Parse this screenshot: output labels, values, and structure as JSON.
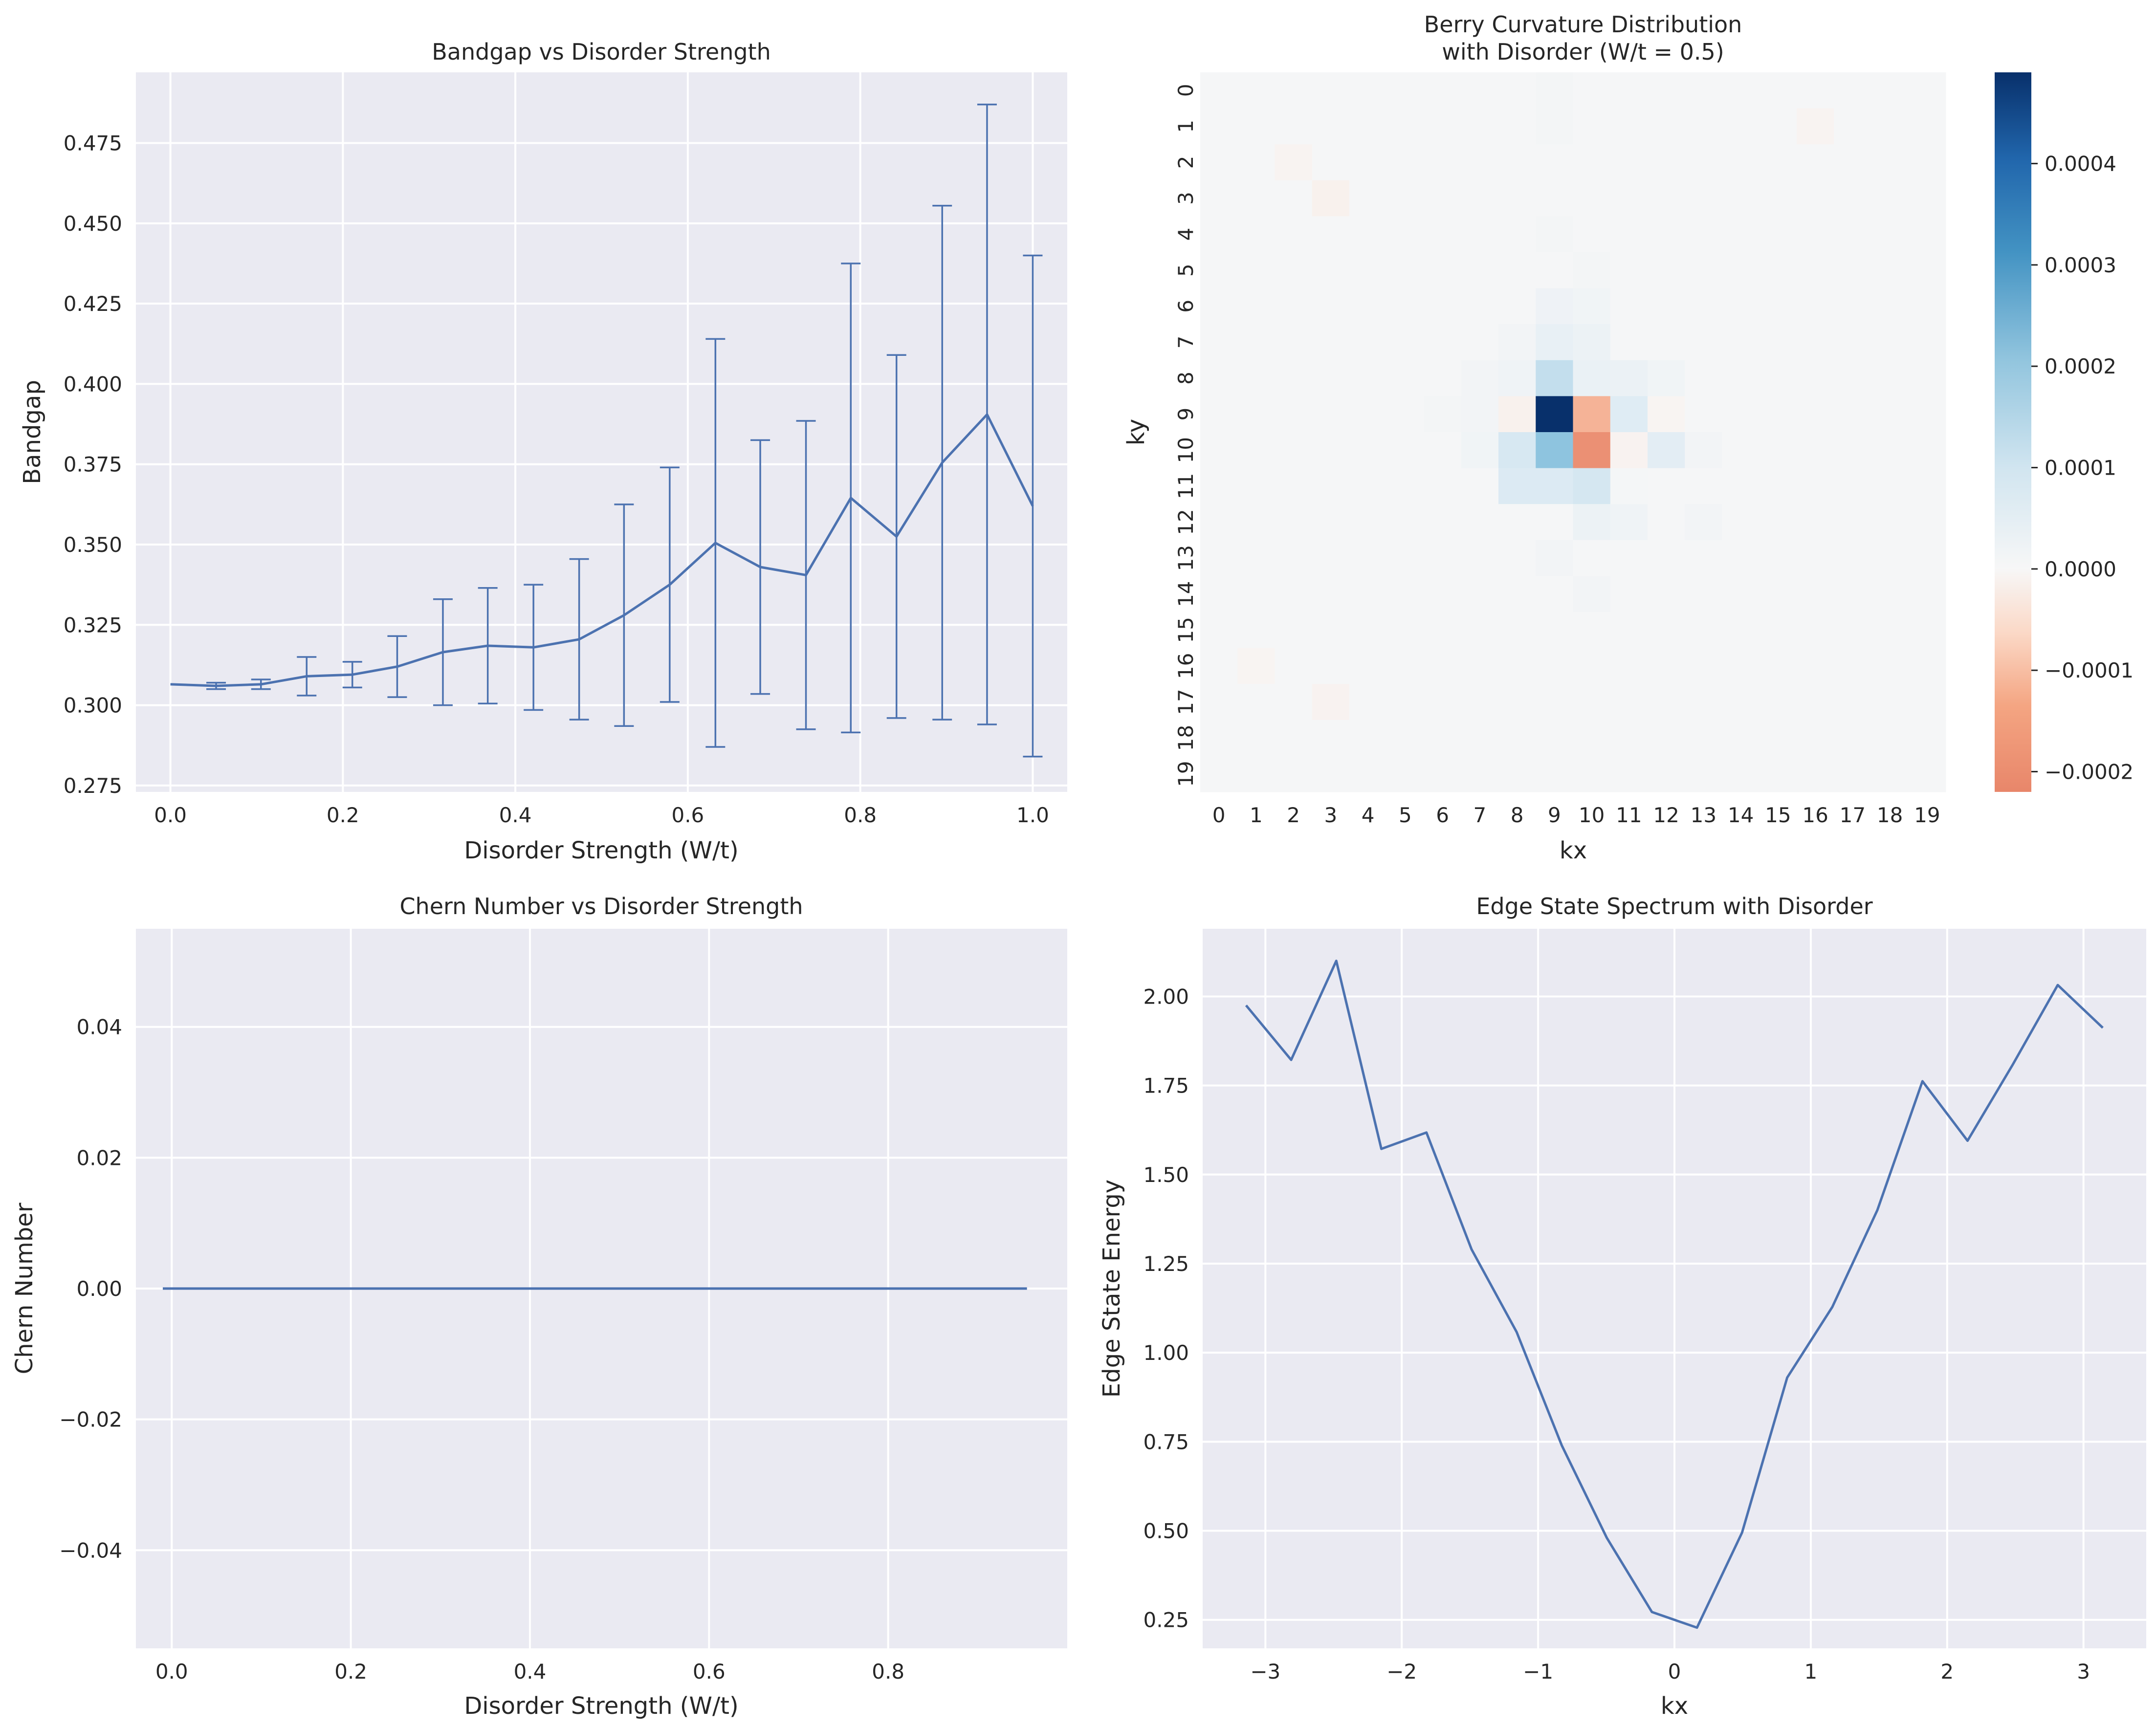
{
  "colors": {
    "series": "#4c72b0",
    "plot_bg": "#eaeaf2",
    "grid": "#ffffff",
    "text": "#262626",
    "cmap_neg": "#e8866a",
    "cmap_zero": "#f7f7f7",
    "cmap_pos": "#08306b"
  },
  "chart_data": [
    {
      "id": "bandgap",
      "type": "line",
      "title": "Bandgap vs Disorder Strength",
      "xlabel": "Disorder Strength (W/t)",
      "ylabel": "Bandgap",
      "xlim": [
        -0.04,
        1.04
      ],
      "ylim": [
        0.273,
        0.497
      ],
      "xticks": [
        0.0,
        0.2,
        0.4,
        0.6,
        0.8,
        1.0
      ],
      "xtick_labels": [
        "0.0",
        "0.2",
        "0.4",
        "0.6",
        "0.8",
        "1.0"
      ],
      "yticks": [
        0.275,
        0.3,
        0.325,
        0.35,
        0.375,
        0.4,
        0.425,
        0.45,
        0.475
      ],
      "ytick_labels": [
        "0.275",
        "0.300",
        "0.325",
        "0.350",
        "0.375",
        "0.400",
        "0.425",
        "0.450",
        "0.475"
      ],
      "x": [
        0.0,
        0.053,
        0.105,
        0.158,
        0.211,
        0.263,
        0.316,
        0.368,
        0.421,
        0.474,
        0.526,
        0.579,
        0.632,
        0.684,
        0.737,
        0.789,
        0.842,
        0.895,
        0.947,
        1.0
      ],
      "y": [
        0.3065,
        0.306,
        0.3065,
        0.309,
        0.3095,
        0.312,
        0.3165,
        0.3185,
        0.318,
        0.3205,
        0.328,
        0.3375,
        0.3505,
        0.343,
        0.3405,
        0.3645,
        0.3525,
        0.3755,
        0.3905,
        0.362
      ],
      "yerr": [
        0.0,
        0.001,
        0.0015,
        0.006,
        0.004,
        0.0095,
        0.0165,
        0.018,
        0.0195,
        0.025,
        0.0345,
        0.0365,
        0.0635,
        0.0395,
        0.048,
        0.073,
        0.0565,
        0.08,
        0.0965,
        0.078
      ],
      "grid": true
    },
    {
      "id": "berry",
      "type": "heatmap",
      "title": "Berry Curvature Distribution",
      "subtitle": "with Disorder (W/t = 0.5)",
      "xlabel": "kx",
      "ylabel": "ky",
      "x_tick_labels": [
        "0",
        "1",
        "2",
        "3",
        "4",
        "5",
        "6",
        "7",
        "8",
        "9",
        "10",
        "11",
        "12",
        "13",
        "14",
        "15",
        "16",
        "17",
        "18",
        "19"
      ],
      "y_tick_labels": [
        "0",
        "1",
        "2",
        "3",
        "4",
        "5",
        "6",
        "7",
        "8",
        "9",
        "10",
        "11",
        "12",
        "13",
        "14",
        "15",
        "16",
        "17",
        "18",
        "19"
      ],
      "vmin": -0.00022,
      "vmax": 0.00049,
      "colorbar_ticks": [
        -0.0002,
        -0.0001,
        0.0,
        0.0001,
        0.0002,
        0.0003,
        0.0004
      ],
      "colorbar_tick_labels": [
        "−0.0002",
        "−0.0001",
        "0.0000",
        "0.0001",
        "0.0002",
        "0.0003",
        "0.0004"
      ],
      "cells": [
        {
          "r": 8,
          "c": 8,
          "v": 1.2e-05
        },
        {
          "r": 8,
          "c": 9,
          "v": 9e-05
        },
        {
          "r": 8,
          "c": 10,
          "v": 2e-05
        },
        {
          "r": 8,
          "c": 11,
          "v": 1.8e-05
        },
        {
          "r": 8,
          "c": 12,
          "v": 1e-05
        },
        {
          "r": 8,
          "c": 7,
          "v": 8e-06
        },
        {
          "r": 7,
          "c": 9,
          "v": 2.2e-05
        },
        {
          "r": 7,
          "c": 10,
          "v": 1.6e-05
        },
        {
          "r": 7,
          "c": 8,
          "v": 8e-06
        },
        {
          "r": 6,
          "c": 9,
          "v": 1.4e-05
        },
        {
          "r": 6,
          "c": 10,
          "v": 1e-05
        },
        {
          "r": 9,
          "c": 8,
          "v": -8e-06
        },
        {
          "r": 9,
          "c": 9,
          "v": 0.00049
        },
        {
          "r": 9,
          "c": 10,
          "v": -9.5e-05
        },
        {
          "r": 9,
          "c": 11,
          "v": 3.5e-05
        },
        {
          "r": 9,
          "c": 7,
          "v": 8e-06
        },
        {
          "r": 9,
          "c": 6,
          "v": 6e-06
        },
        {
          "r": 9,
          "c": 12,
          "v": -4e-06
        },
        {
          "r": 10,
          "c": 8,
          "v": 5e-05
        },
        {
          "r": 10,
          "c": 9,
          "v": 0.00018
        },
        {
          "r": 10,
          "c": 10,
          "v": -0.00019
        },
        {
          "r": 10,
          "c": 11,
          "v": -6e-06
        },
        {
          "r": 10,
          "c": 12,
          "v": 3e-05
        },
        {
          "r": 10,
          "c": 7,
          "v": 1e-05
        },
        {
          "r": 10,
          "c": 13,
          "v": 8e-06
        },
        {
          "r": 11,
          "c": 8,
          "v": 4e-05
        },
        {
          "r": 11,
          "c": 9,
          "v": 4e-05
        },
        {
          "r": 11,
          "c": 10,
          "v": 5.5e-05
        },
        {
          "r": 11,
          "c": 11,
          "v": 4e-06
        },
        {
          "r": 12,
          "c": 10,
          "v": 1.6e-05
        },
        {
          "r": 12,
          "c": 11,
          "v": 1.2e-05
        },
        {
          "r": 12,
          "c": 13,
          "v": 8e-06
        },
        {
          "r": 13,
          "c": 9,
          "v": 8e-06
        },
        {
          "r": 14,
          "c": 10,
          "v": 8e-06
        },
        {
          "r": 3,
          "c": 3,
          "v": -8e-06
        },
        {
          "r": 2,
          "c": 2,
          "v": -5e-06
        },
        {
          "r": 1,
          "c": 16,
          "v": -5e-06
        },
        {
          "r": 17,
          "c": 3,
          "v": -6e-06
        },
        {
          "r": 16,
          "c": 1,
          "v": -4e-06
        },
        {
          "r": 0,
          "c": 9,
          "v": 6e-06
        },
        {
          "r": 1,
          "c": 9,
          "v": 6e-06
        },
        {
          "r": 5,
          "c": 10,
          "v": 6e-06
        },
        {
          "r": 4,
          "c": 9,
          "v": 6e-06
        }
      ],
      "grid": false
    },
    {
      "id": "chern",
      "type": "line",
      "title": "Chern Number vs Disorder Strength",
      "xlabel": "Disorder Strength (W/t)",
      "ylabel": "Chern Number",
      "xlim": [
        -0.04,
        1.0
      ],
      "ylim": [
        -0.055,
        0.055
      ],
      "xticks": [
        0.0,
        0.2,
        0.4,
        0.6,
        0.8
      ],
      "xtick_labels": [
        "0.0",
        "0.2",
        "0.4",
        "0.6",
        "0.8"
      ],
      "yticks": [
        -0.04,
        -0.02,
        0.0,
        0.02,
        0.04
      ],
      "ytick_labels": [
        "−0.04",
        "−0.02",
        "0.00",
        "0.02",
        "0.04"
      ],
      "x": [
        -0.01,
        0.955
      ],
      "y": [
        0.0,
        0.0
      ],
      "grid": true
    },
    {
      "id": "edge",
      "type": "line",
      "title": "Edge State Spectrum with Disorder",
      "xlabel": "kx",
      "ylabel": "Edge State Energy",
      "xlim": [
        -3.46,
        3.46
      ],
      "ylim": [
        0.17,
        2.19
      ],
      "xticks": [
        -3,
        -2,
        -1,
        0,
        1,
        2,
        3
      ],
      "xtick_labels": [
        "−3",
        "−2",
        "−1",
        "0",
        "1",
        "2",
        "3"
      ],
      "yticks": [
        0.25,
        0.5,
        0.75,
        1.0,
        1.25,
        1.5,
        1.75,
        2.0
      ],
      "ytick_labels": [
        "0.25",
        "0.50",
        "0.75",
        "1.00",
        "1.25",
        "1.50",
        "1.75",
        "2.00"
      ],
      "x": [
        -3.1416,
        -2.8109,
        -2.4802,
        -2.1495,
        -1.8188,
        -1.4881,
        -1.1574,
        -0.8267,
        -0.496,
        -0.1653,
        0.1653,
        0.496,
        0.8267,
        1.1574,
        1.4881,
        1.8188,
        2.1495,
        2.4802,
        2.8109,
        3.1416
      ],
      "y": [
        1.975,
        1.822,
        2.1,
        1.572,
        1.618,
        1.29,
        1.058,
        0.74,
        0.48,
        0.272,
        0.228,
        0.495,
        0.93,
        1.128,
        1.4,
        1.762,
        1.595,
        1.808,
        2.032,
        1.912
      ],
      "grid": true
    }
  ]
}
